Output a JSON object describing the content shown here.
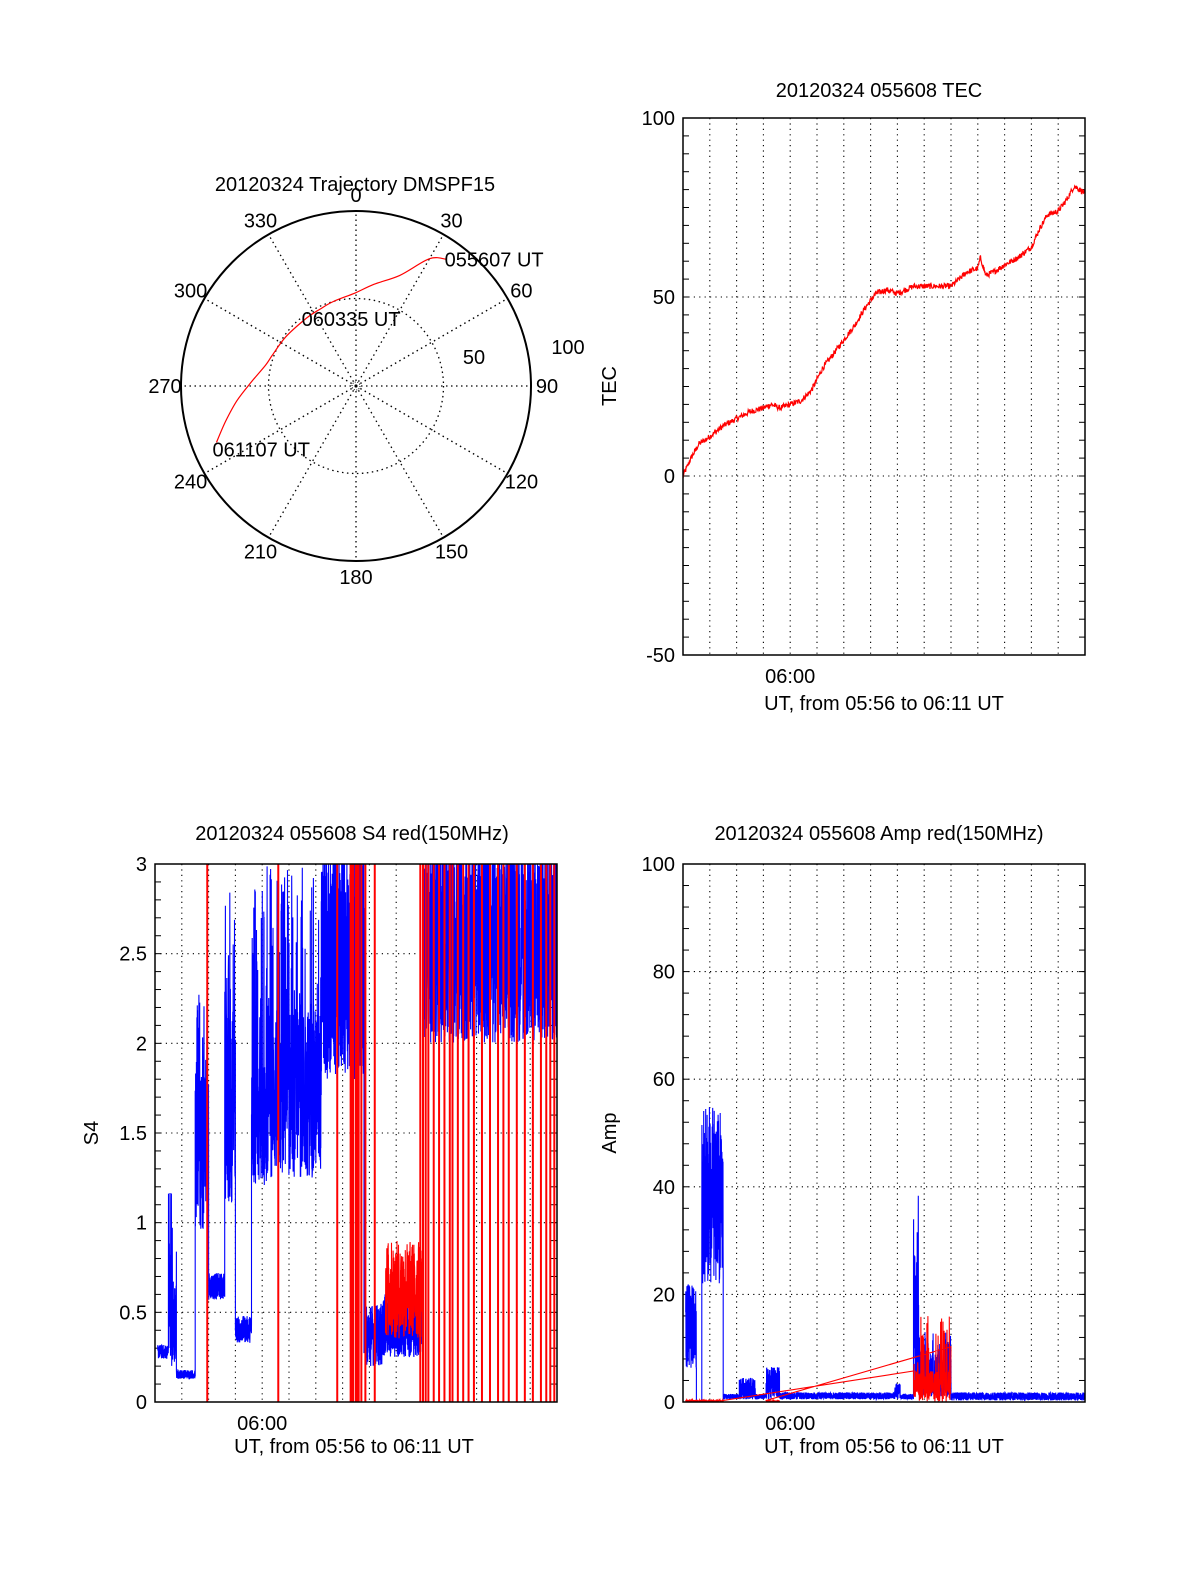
{
  "chart_data": [
    {
      "id": "trajectory",
      "type": "polar",
      "title": "20120324 Trajectory DMSPF15",
      "azimuth_labels": [
        "0",
        "30",
        "60",
        "90",
        "120",
        "150",
        "180",
        "210",
        "240",
        "270",
        "300",
        "330"
      ],
      "radial_labels": [
        "50",
        "100"
      ],
      "radial_range": [
        0,
        100
      ],
      "grid": true,
      "series": [
        {
          "name": "trajectory",
          "color": "#ff0000",
          "points_az_zen": [
            [
              35.6,
              89
            ],
            [
              30,
              84
            ],
            [
              21.6,
              68
            ],
            [
              10,
              59
            ],
            [
              359,
              53
            ],
            [
              345,
              50
            ],
            [
              335,
              48.5
            ],
            [
              324,
              48
            ],
            [
              305,
              49
            ],
            [
              290,
              51
            ],
            [
              283,
              53
            ],
            [
              272,
              60
            ],
            [
              263,
              68.5
            ],
            [
              255,
              77
            ],
            [
              248,
              86
            ]
          ]
        }
      ],
      "annotations": [
        {
          "text": "055607 UT",
          "at": "start"
        },
        {
          "text": "060335 UT",
          "at": "middle"
        },
        {
          "text": "061107 UT",
          "at": "end"
        }
      ]
    },
    {
      "id": "tec",
      "type": "line",
      "title": "20120324 055608 TEC",
      "xlabel": "UT, from 05:56 to 06:11 UT",
      "ylabel": "TEC",
      "xlim": [
        0,
        15
      ],
      "ylim": [
        -50,
        100
      ],
      "xticks": [
        {
          "value": 4,
          "label": "06:00"
        }
      ],
      "yticks": [
        "100",
        "50",
        "0",
        "-50"
      ],
      "yticks_values": [
        100,
        50,
        0,
        -50
      ],
      "grid": true,
      "series": [
        {
          "name": "TEC",
          "color": "#ff0000",
          "x": [
            0,
            0.3,
            0.6,
            1,
            1.5,
            2,
            2.5,
            3,
            3.3,
            3.6,
            4,
            4.4,
            4.8,
            5.2,
            5.6,
            6,
            6.4,
            6.8,
            7.2,
            7.6,
            8,
            8.3,
            8.6,
            9,
            9.5,
            10,
            10.3,
            10.6,
            11,
            11.1,
            11.3,
            11.6,
            12,
            12.5,
            13,
            13.3,
            13.6,
            14,
            14.3,
            14.6,
            14.8,
            15
          ],
          "y": [
            0,
            5,
            9,
            11,
            14,
            16,
            18,
            19,
            20,
            19,
            20,
            21,
            24,
            30,
            34,
            38,
            42,
            47,
            51,
            52,
            51,
            52,
            53,
            53,
            53,
            53,
            55,
            57,
            58,
            61,
            56,
            57,
            59,
            61,
            64,
            69,
            73,
            74,
            77,
            81,
            80,
            79
          ]
        }
      ]
    },
    {
      "id": "s4",
      "type": "line",
      "title": "20120324 055608 S4 red(150MHz)",
      "xlabel": "UT, from 05:56 to 06:11 UT",
      "ylabel": "S4",
      "xlim": [
        0,
        15
      ],
      "ylim": [
        0,
        3
      ],
      "xticks": [
        {
          "value": 4,
          "label": "06:00"
        }
      ],
      "yticks": [
        "0",
        "0.5",
        "1",
        "1.5",
        "2",
        "2.5",
        "3"
      ],
      "yticks_values": [
        0,
        0.5,
        1,
        1.5,
        2,
        2.5,
        3
      ],
      "grid": true,
      "series": [
        {
          "name": "S4 blue",
          "color": "#0000ff",
          "segments": [
            {
              "t": [
                0.1,
                0.5
              ],
              "lo": 0.24,
              "hi": 0.32
            },
            {
              "t": [
                0.5,
                0.8
              ],
              "lo": 0.2,
              "hi": 0.7,
              "spikes": 1.2
            },
            {
              "t": [
                0.8,
                1.5
              ],
              "lo": 0.13,
              "hi": 0.18
            },
            {
              "t": [
                1.5,
                2.0
              ],
              "lo": 0.95,
              "hi": 1.9,
              "spikes": 2.35
            },
            {
              "t": [
                2.0,
                2.6
              ],
              "lo": 0.57,
              "hi": 0.72
            },
            {
              "t": [
                2.6,
                3.0
              ],
              "lo": 1.1,
              "hi": 2.2,
              "spikes": 2.85
            },
            {
              "t": [
                3.0,
                3.6
              ],
              "lo": 0.33,
              "hi": 0.48
            },
            {
              "t": [
                3.6,
                4.2
              ],
              "lo": 1.2,
              "hi": 1.9,
              "spikes": 3.0
            },
            {
              "t": [
                4.2,
                6.2
              ],
              "lo": 1.25,
              "hi": 2.2,
              "spikes": 3.0
            },
            {
              "t": [
                6.2,
                7.8
              ],
              "lo": 1.8,
              "hi": 3.0,
              "spikes": 3.0
            },
            {
              "t": [
                7.8,
                8.5
              ],
              "lo": 0.2,
              "hi": 0.55
            },
            {
              "t": [
                8.5,
                10.0
              ],
              "lo": 0.25,
              "hi": 0.6
            },
            {
              "t": [
                10.0,
                15.0
              ],
              "lo": 2.0,
              "hi": 3.0,
              "spikes": 3.0
            }
          ]
        },
        {
          "name": "S4 red",
          "color": "#ff0000",
          "spike_times": [
            1.95,
            4.6,
            6.8,
            7.3,
            7.35,
            7.4,
            7.5,
            7.55,
            7.6,
            7.7,
            7.85,
            8.2,
            9.9,
            10.0,
            10.1,
            10.2,
            10.4,
            10.6,
            10.8,
            11.0,
            11.1,
            11.3,
            11.5,
            11.7,
            11.9,
            12.2,
            12.5,
            12.8,
            13.0,
            13.2,
            13.5,
            13.8,
            14.1,
            14.4,
            14.6,
            14.75,
            14.9
          ],
          "segments": [
            {
              "t": [
                8.6,
                10.0
              ],
              "lo": 0.35,
              "hi": 0.9
            }
          ]
        }
      ]
    },
    {
      "id": "amp",
      "type": "line",
      "title": "20120324 055608 Amp red(150MHz)",
      "xlabel": "UT, from 05:56 to 06:11 UT",
      "ylabel": "Amp",
      "xlim": [
        0,
        15
      ],
      "ylim": [
        0,
        100
      ],
      "xticks": [
        {
          "value": 4,
          "label": "06:00"
        }
      ],
      "yticks": [
        "0",
        "20",
        "40",
        "60",
        "80",
        "100"
      ],
      "yticks_values": [
        0,
        20,
        40,
        60,
        80,
        100
      ],
      "grid": true,
      "series": [
        {
          "name": "Amp blue",
          "color": "#0000ff",
          "segments": [
            {
              "t": [
                0.1,
                0.5
              ],
              "lo": 6,
              "hi": 22
            },
            {
              "t": [
                0.5,
                0.7
              ],
              "lo": 0,
              "hi": 0
            },
            {
              "t": [
                0.7,
                1.5
              ],
              "lo": 22,
              "hi": 50,
              "spikes": 55
            },
            {
              "t": [
                1.5,
                2.1
              ],
              "lo": 0.5,
              "hi": 1.5
            },
            {
              "t": [
                2.1,
                2.7
              ],
              "lo": 0.5,
              "hi": 4.5
            },
            {
              "t": [
                2.7,
                3.1
              ],
              "lo": 0.5,
              "hi": 1.5
            },
            {
              "t": [
                3.1,
                3.6
              ],
              "lo": 0.5,
              "hi": 6.5
            },
            {
              "t": [
                3.6,
                7.9
              ],
              "lo": 0.5,
              "hi": 1.8
            },
            {
              "t": [
                7.9,
                8.1
              ],
              "lo": 0.5,
              "hi": 3.5
            },
            {
              "t": [
                8.1,
                8.6
              ],
              "lo": 0.5,
              "hi": 1.5
            },
            {
              "t": [
                8.6,
                8.8
              ],
              "lo": 2,
              "hi": 30,
              "spikes": 40.5
            },
            {
              "t": [
                8.8,
                10.0
              ],
              "lo": 1,
              "hi": 9,
              "spikes": 13
            },
            {
              "t": [
                10.0,
                15.0
              ],
              "lo": 0.3,
              "hi": 1.8
            }
          ]
        },
        {
          "name": "Amp red",
          "color": "#ff0000",
          "segments": [
            {
              "t": [
                0.1,
                1.5
              ],
              "lo": 0,
              "hi": 0.4
            },
            {
              "t": [
                8.6,
                10.0
              ],
              "lo": 0,
              "hi": 6,
              "spikes": 16
            },
            {
              "t": [
                3.1,
                3.6
              ],
              "lo": 0,
              "hi": 0.3
            }
          ]
        }
      ]
    }
  ]
}
